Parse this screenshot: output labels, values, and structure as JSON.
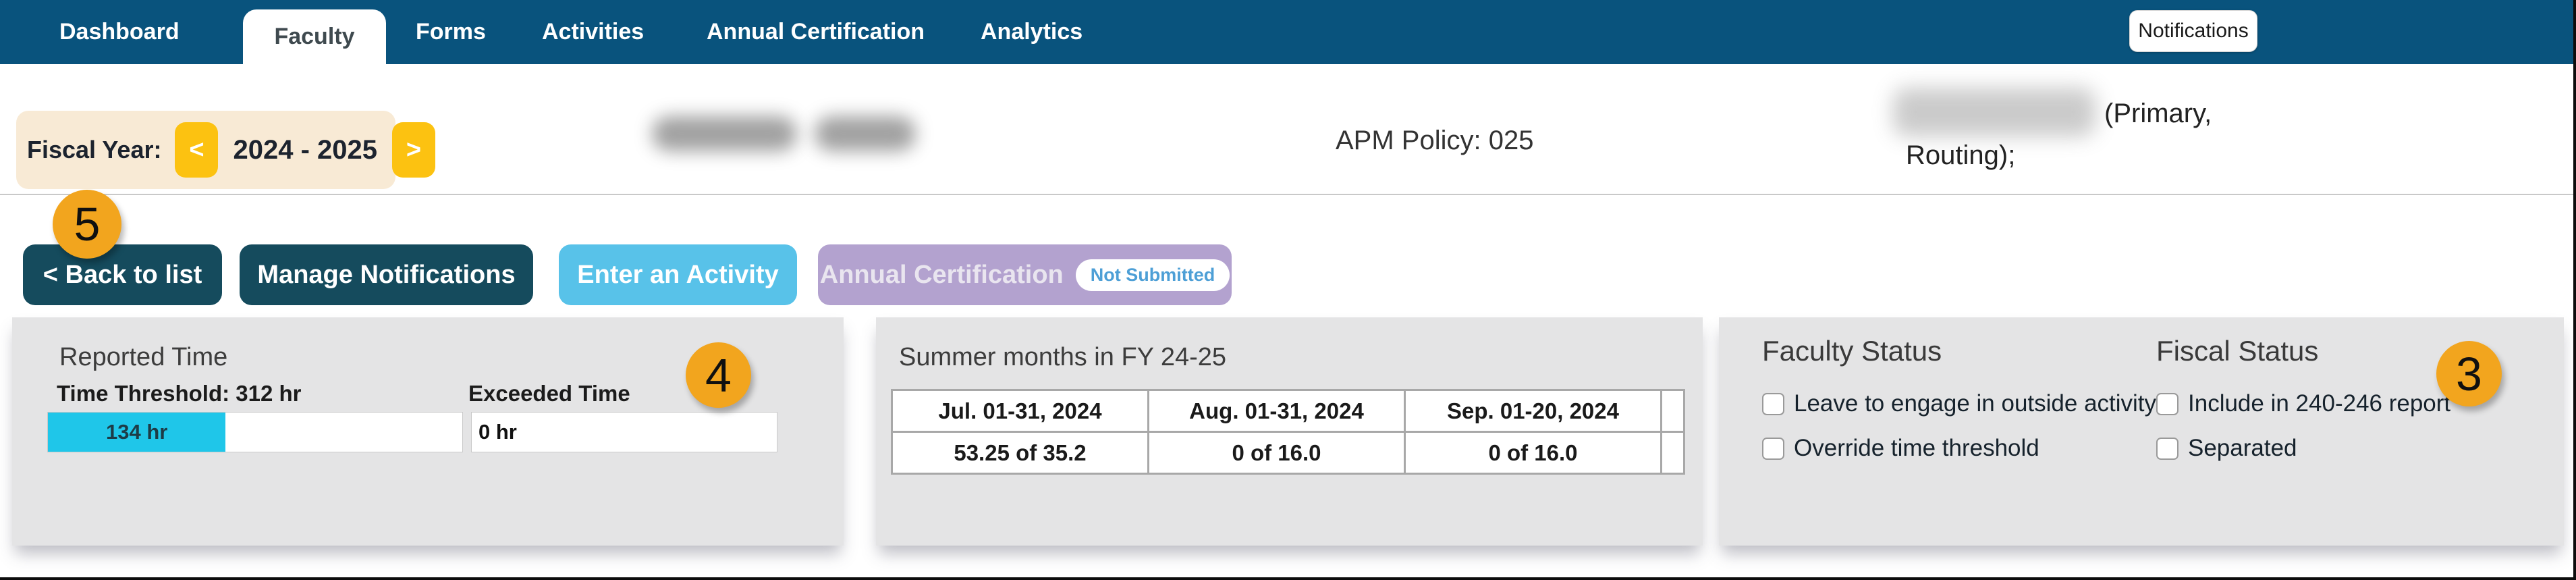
{
  "colors": {
    "nav_blue": "#09537D",
    "btn_teal": "#154B5D",
    "btn_skyblue": "#58C2E9",
    "btn_purple": "#B3A2CF",
    "badge_blue": "#4D9FD6",
    "cyan_highlight": "#1FC6E9",
    "callout_orange": "#F2A51E",
    "fiscal_bg": "#F8EAD5",
    "fiscal_yellow": "#FCC211",
    "panel_gray": "#E4E4E5"
  },
  "nav": {
    "items": [
      {
        "label": "Dashboard",
        "active": false
      },
      {
        "label": "Faculty",
        "active": true
      },
      {
        "label": "Forms",
        "active": false
      },
      {
        "label": "Activities",
        "active": false
      },
      {
        "label": "Annual Certification",
        "active": false
      },
      {
        "label": "Analytics",
        "active": false
      }
    ],
    "notifications_label": "Notifications"
  },
  "header": {
    "fiscal_year_label": "Fiscal Year:",
    "prev_arrow": "<",
    "fiscal_year_value": "2024 - 2025",
    "next_arrow": ">",
    "apm_policy": "APM Policy: 025",
    "department_line1": "(Primary,",
    "department_line2": "Routing);",
    "redacted_name": "",
    "redacted_department": ""
  },
  "actions": {
    "back_label": "< Back to list",
    "manage_notifications_label": "Manage Notifications",
    "enter_activity_label": "Enter an Activity",
    "annual_certification_label": "Annual Certification",
    "annual_certification_badge": "Not Submitted"
  },
  "reported_time": {
    "title": "Reported Time",
    "threshold_label": "Time Threshold: 312 hr",
    "threshold_hours": 312,
    "reported_value_label": "134 hr",
    "reported_hours": 134,
    "exceeded_label": "Exceeded Time",
    "exceeded_value_label": "0 hr",
    "exceeded_hours": 0
  },
  "summer_months": {
    "title": "Summer months in FY 24-25",
    "columns": [
      "Jul. 01-31, 2024",
      "Aug. 01-31, 2024",
      "Sep. 01-20, 2024"
    ],
    "values": [
      "53.25 of 35.2",
      "0 of 16.0",
      "0 of 16.0"
    ]
  },
  "faculty_status": {
    "title": "Faculty Status",
    "options": [
      {
        "label": "Leave to engage in outside activity",
        "checked": false
      },
      {
        "label": "Override time threshold",
        "checked": false
      }
    ]
  },
  "fiscal_status": {
    "title": "Fiscal Status",
    "options": [
      {
        "label": "Include in 240-246 report",
        "checked": false
      },
      {
        "label": "Separated",
        "checked": false
      }
    ]
  },
  "annotations": {
    "callouts": [
      {
        "number": "5"
      },
      {
        "number": "4"
      },
      {
        "number": "3"
      }
    ]
  }
}
